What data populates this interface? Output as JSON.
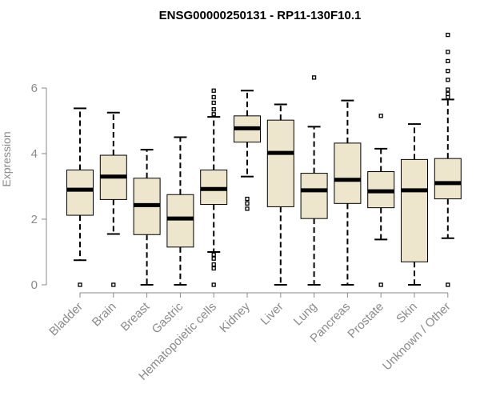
{
  "chart_data": {
    "type": "boxplot",
    "title": "ENSG00000250131 - RP11-130F10.1",
    "xlabel": "",
    "ylabel": "Expression",
    "ylim": [
      0,
      7.6
    ],
    "yticks": [
      0,
      2,
      4,
      6
    ],
    "box_fill": "#ede6cc",
    "categories": [
      "Bladder",
      "Brain",
      "Breast",
      "Gastric",
      "Hematopoietic cells",
      "Kidney",
      "Liver",
      "Lung",
      "Pancreas",
      "Prostate",
      "Skin",
      "Unknown / Other"
    ],
    "boxes": [
      {
        "name": "Bladder",
        "whisker_low": 0.75,
        "q1": 2.12,
        "median": 2.9,
        "q3": 3.5,
        "whisker_high": 5.38,
        "outliers": [
          0.0
        ]
      },
      {
        "name": "Brain",
        "whisker_low": 1.55,
        "q1": 2.6,
        "median": 3.3,
        "q3": 3.95,
        "whisker_high": 5.25,
        "outliers": [
          0.0
        ]
      },
      {
        "name": "Breast",
        "whisker_low": 0.0,
        "q1": 1.53,
        "median": 2.43,
        "q3": 3.25,
        "whisker_high": 4.12,
        "outliers": []
      },
      {
        "name": "Gastric",
        "whisker_low": 0.0,
        "q1": 1.15,
        "median": 2.02,
        "q3": 2.75,
        "whisker_high": 4.5,
        "outliers": []
      },
      {
        "name": "Hematopoietic cells",
        "whisker_low": 1.0,
        "q1": 2.45,
        "median": 2.92,
        "q3": 3.5,
        "whisker_high": 5.12,
        "outliers": [
          0.0,
          0.5,
          0.62,
          0.8,
          0.92,
          5.2,
          5.35,
          5.55,
          5.72,
          5.92
        ]
      },
      {
        "name": "Kidney",
        "whisker_low": 3.3,
        "q1": 4.35,
        "median": 4.77,
        "q3": 5.15,
        "whisker_high": 5.92,
        "outliers": [
          2.32,
          2.48,
          2.62
        ]
      },
      {
        "name": "Liver",
        "whisker_low": 0.0,
        "q1": 2.38,
        "median": 4.02,
        "q3": 5.02,
        "whisker_high": 5.5,
        "outliers": []
      },
      {
        "name": "Lung",
        "whisker_low": 0.0,
        "q1": 2.02,
        "median": 2.88,
        "q3": 3.4,
        "whisker_high": 4.82,
        "outliers": [
          6.32
        ]
      },
      {
        "name": "Pancreas",
        "whisker_low": 0.0,
        "q1": 2.48,
        "median": 3.2,
        "q3": 4.32,
        "whisker_high": 5.62,
        "outliers": []
      },
      {
        "name": "Prostate",
        "whisker_low": 1.38,
        "q1": 2.35,
        "median": 2.85,
        "q3": 3.45,
        "whisker_high": 4.15,
        "outliers": [
          0.0,
          5.15
        ]
      },
      {
        "name": "Skin",
        "whisker_low": 0.0,
        "q1": 0.7,
        "median": 2.88,
        "q3": 3.82,
        "whisker_high": 4.9,
        "outliers": []
      },
      {
        "name": "Unknown / Other",
        "whisker_low": 1.42,
        "q1": 2.62,
        "median": 3.1,
        "q3": 3.85,
        "whisker_high": 5.65,
        "outliers": [
          0.0,
          5.72,
          5.82,
          5.95,
          6.25,
          6.52,
          6.82,
          7.1,
          7.62
        ]
      }
    ]
  }
}
